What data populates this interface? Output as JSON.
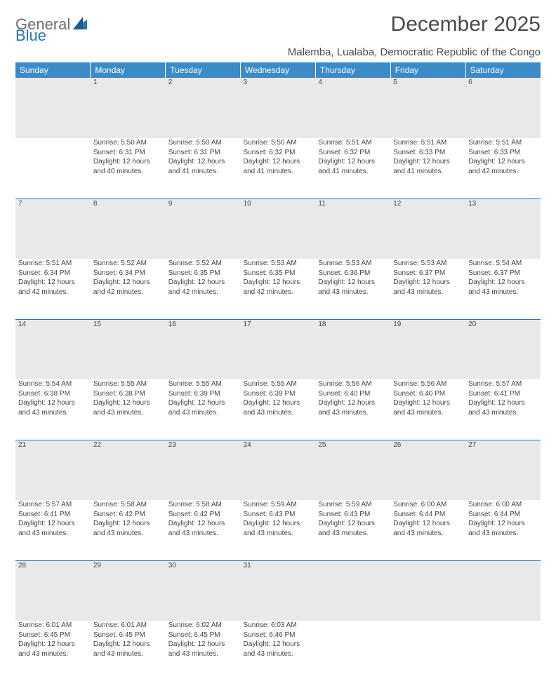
{
  "logo": {
    "text1": "General",
    "text2": "Blue"
  },
  "title": "December 2025",
  "location": "Malemba, Lualaba, Democratic Republic of the Congo",
  "colors": {
    "header_bg": "#3b8bc8",
    "header_text": "#ffffff",
    "row_border": "#2a74b8",
    "daynum_bg": "#e9e9e9",
    "text": "#444444",
    "title_text": "#4a4a4a"
  },
  "weekdays": [
    "Sunday",
    "Monday",
    "Tuesday",
    "Wednesday",
    "Thursday",
    "Friday",
    "Saturday"
  ],
  "weeks": [
    [
      null,
      {
        "n": "1",
        "sr": "5:50 AM",
        "ss": "6:31 PM",
        "dl": "12 hours and 40 minutes."
      },
      {
        "n": "2",
        "sr": "5:50 AM",
        "ss": "6:31 PM",
        "dl": "12 hours and 41 minutes."
      },
      {
        "n": "3",
        "sr": "5:50 AM",
        "ss": "6:32 PM",
        "dl": "12 hours and 41 minutes."
      },
      {
        "n": "4",
        "sr": "5:51 AM",
        "ss": "6:32 PM",
        "dl": "12 hours and 41 minutes."
      },
      {
        "n": "5",
        "sr": "5:51 AM",
        "ss": "6:33 PM",
        "dl": "12 hours and 41 minutes."
      },
      {
        "n": "6",
        "sr": "5:51 AM",
        "ss": "6:33 PM",
        "dl": "12 hours and 42 minutes."
      }
    ],
    [
      {
        "n": "7",
        "sr": "5:51 AM",
        "ss": "6:34 PM",
        "dl": "12 hours and 42 minutes."
      },
      {
        "n": "8",
        "sr": "5:52 AM",
        "ss": "6:34 PM",
        "dl": "12 hours and 42 minutes."
      },
      {
        "n": "9",
        "sr": "5:52 AM",
        "ss": "6:35 PM",
        "dl": "12 hours and 42 minutes."
      },
      {
        "n": "10",
        "sr": "5:53 AM",
        "ss": "6:35 PM",
        "dl": "12 hours and 42 minutes."
      },
      {
        "n": "11",
        "sr": "5:53 AM",
        "ss": "6:36 PM",
        "dl": "12 hours and 43 minutes."
      },
      {
        "n": "12",
        "sr": "5:53 AM",
        "ss": "6:37 PM",
        "dl": "12 hours and 43 minutes."
      },
      {
        "n": "13",
        "sr": "5:54 AM",
        "ss": "6:37 PM",
        "dl": "12 hours and 43 minutes."
      }
    ],
    [
      {
        "n": "14",
        "sr": "5:54 AM",
        "ss": "6:38 PM",
        "dl": "12 hours and 43 minutes."
      },
      {
        "n": "15",
        "sr": "5:55 AM",
        "ss": "6:38 PM",
        "dl": "12 hours and 43 minutes."
      },
      {
        "n": "16",
        "sr": "5:55 AM",
        "ss": "6:39 PM",
        "dl": "12 hours and 43 minutes."
      },
      {
        "n": "17",
        "sr": "5:55 AM",
        "ss": "6:39 PM",
        "dl": "12 hours and 43 minutes."
      },
      {
        "n": "18",
        "sr": "5:56 AM",
        "ss": "6:40 PM",
        "dl": "12 hours and 43 minutes."
      },
      {
        "n": "19",
        "sr": "5:56 AM",
        "ss": "6:40 PM",
        "dl": "12 hours and 43 minutes."
      },
      {
        "n": "20",
        "sr": "5:57 AM",
        "ss": "6:41 PM",
        "dl": "12 hours and 43 minutes."
      }
    ],
    [
      {
        "n": "21",
        "sr": "5:57 AM",
        "ss": "6:41 PM",
        "dl": "12 hours and 43 minutes."
      },
      {
        "n": "22",
        "sr": "5:58 AM",
        "ss": "6:42 PM",
        "dl": "12 hours and 43 minutes."
      },
      {
        "n": "23",
        "sr": "5:58 AM",
        "ss": "6:42 PM",
        "dl": "12 hours and 43 minutes."
      },
      {
        "n": "24",
        "sr": "5:59 AM",
        "ss": "6:43 PM",
        "dl": "12 hours and 43 minutes."
      },
      {
        "n": "25",
        "sr": "5:59 AM",
        "ss": "6:43 PM",
        "dl": "12 hours and 43 minutes."
      },
      {
        "n": "26",
        "sr": "6:00 AM",
        "ss": "6:44 PM",
        "dl": "12 hours and 43 minutes."
      },
      {
        "n": "27",
        "sr": "6:00 AM",
        "ss": "6:44 PM",
        "dl": "12 hours and 43 minutes."
      }
    ],
    [
      {
        "n": "28",
        "sr": "6:01 AM",
        "ss": "6:45 PM",
        "dl": "12 hours and 43 minutes."
      },
      {
        "n": "29",
        "sr": "6:01 AM",
        "ss": "6:45 PM",
        "dl": "12 hours and 43 minutes."
      },
      {
        "n": "30",
        "sr": "6:02 AM",
        "ss": "6:45 PM",
        "dl": "12 hours and 43 minutes."
      },
      {
        "n": "31",
        "sr": "6:03 AM",
        "ss": "6:46 PM",
        "dl": "12 hours and 43 minutes."
      },
      null,
      null,
      null
    ]
  ],
  "labels": {
    "sunrise": "Sunrise:",
    "sunset": "Sunset:",
    "daylight": "Daylight:"
  }
}
